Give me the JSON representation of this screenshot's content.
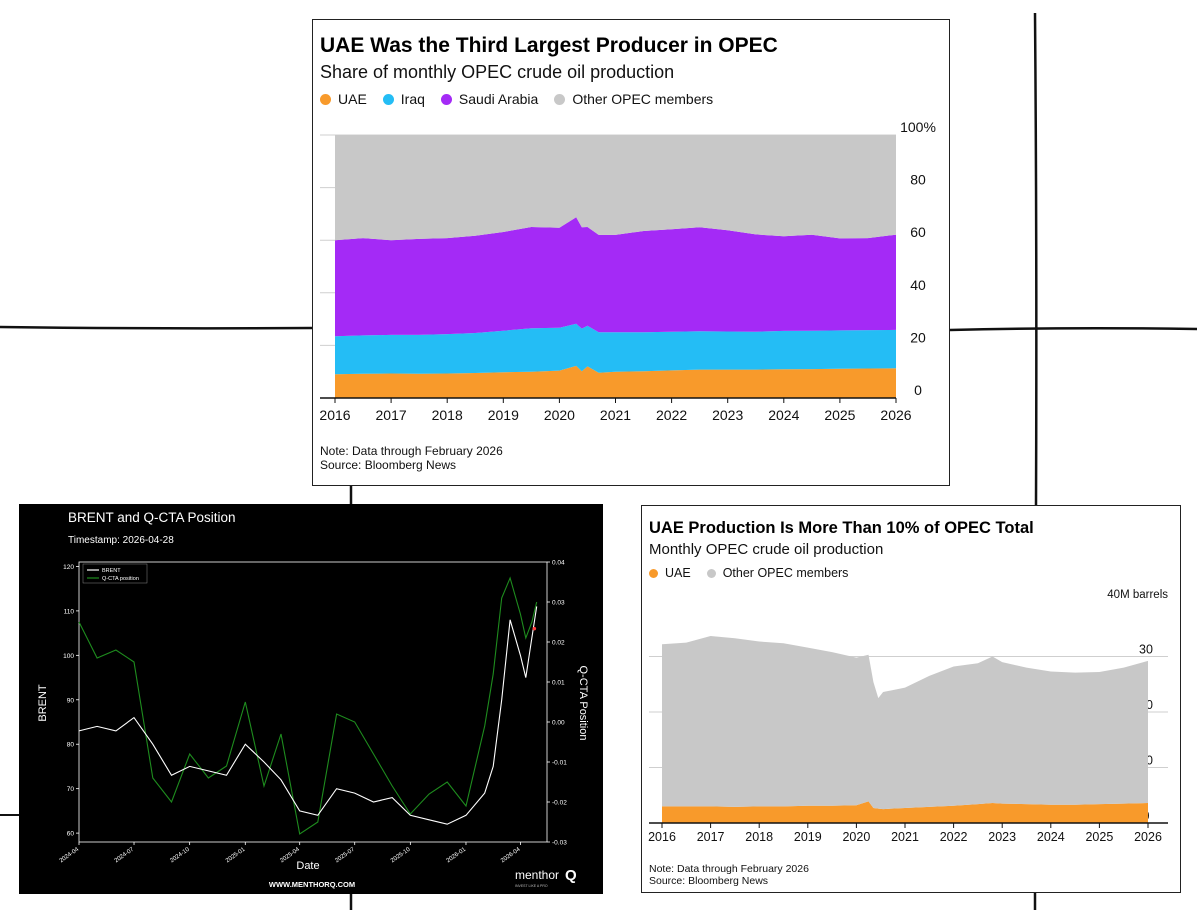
{
  "charts": {
    "share": {
      "title": "UAE Was the Third Largest Producer in OPEC",
      "subtitle": "Share of monthly OPEC crude oil production",
      "note": "Note: Data through February 2026",
      "source": "Source: Bloomberg News",
      "legend": [
        {
          "label": "UAE",
          "color": "#f89a2b"
        },
        {
          "label": "Iraq",
          "color": "#24bdf5"
        },
        {
          "label": "Saudi Arabia",
          "color": "#a42af6"
        },
        {
          "label": "Other OPEC members",
          "color": "#c8c8c8"
        }
      ],
      "y_tick_labels": [
        "0",
        "20",
        "40",
        "60",
        "80",
        "100%"
      ],
      "x_tick_labels": [
        "2016",
        "2017",
        "2018",
        "2019",
        "2020",
        "2021",
        "2022",
        "2023",
        "2024",
        "2025",
        "2026"
      ]
    },
    "brent": {
      "title": "BRENT and Q-CTA Position",
      "timestamp": "Timestamp: 2026-04-28",
      "ylabel_left": "BRENT",
      "ylabel_right": "Q-CTA Position",
      "xlabel": "Date",
      "legend": [
        {
          "label": "BRENT",
          "color": "#ffffff"
        },
        {
          "label": "Q-CTA position",
          "color": "#1e8c1e"
        }
      ],
      "left_ticks": [
        "60",
        "70",
        "80",
        "90",
        "100",
        "110",
        "120"
      ],
      "right_ticks": [
        "-0.03",
        "-0.02",
        "-0.01",
        "0.00",
        "0.01",
        "0.02",
        "0.03",
        "0.04"
      ],
      "x_tick_labels": [
        "2024-04",
        "2024-07",
        "2024-10",
        "2025-01",
        "2025-04",
        "2025-07",
        "2025-10",
        "2026-01",
        "2026-04"
      ],
      "website": "WWW.MENTHORQ.COM",
      "brand": "menthor",
      "brand_mark": "Q",
      "brand_tagline": "INVEST LIKE A PRO"
    },
    "production": {
      "title": "UAE Production Is More Than 10% of OPEC Total",
      "subtitle": "Monthly OPEC crude oil production",
      "unit_label": "40M barrels",
      "note": "Note: Data through February 2026",
      "source": "Source: Bloomberg News",
      "legend": [
        {
          "label": "UAE",
          "color": "#f89a2b"
        },
        {
          "label": "Other OPEC members",
          "color": "#c8c8c8"
        }
      ],
      "y_tick_labels": [
        "0",
        "10",
        "20",
        "30"
      ],
      "x_tick_labels": [
        "2016",
        "2017",
        "2018",
        "2019",
        "2020",
        "2021",
        "2022",
        "2023",
        "2024",
        "2025",
        "2026"
      ]
    }
  },
  "chart_data": [
    {
      "type": "area",
      "title": "UAE Was the Third Largest Producer in OPEC",
      "subtitle": "Share of monthly OPEC crude oil production",
      "ylim": [
        0,
        100
      ],
      "y_unit": "%",
      "stacked": true,
      "x": [
        2016.0,
        2016.5,
        2017.0,
        2017.5,
        2018.0,
        2018.5,
        2019.0,
        2019.5,
        2020.0,
        2020.3,
        2020.4,
        2020.5,
        2020.7,
        2021.0,
        2021.5,
        2022.0,
        2022.5,
        2023.0,
        2023.5,
        2024.0,
        2024.5,
        2025.0,
        2025.5,
        2026.0
      ],
      "series": [
        {
          "name": "UAE",
          "values": [
            9.0,
            9.2,
            9.3,
            9.2,
            9.3,
            9.5,
            9.8,
            10.0,
            10.4,
            12.2,
            10.2,
            12.0,
            9.6,
            10.0,
            10.2,
            10.5,
            10.8,
            10.8,
            10.8,
            10.9,
            11.0,
            11.1,
            11.2,
            11.3
          ]
        },
        {
          "name": "Iraq",
          "values": [
            14.5,
            14.6,
            14.7,
            14.8,
            15.0,
            15.2,
            15.8,
            16.5,
            16.3,
            16.0,
            16.2,
            15.5,
            15.4,
            15.0,
            14.8,
            14.7,
            14.6,
            14.5,
            14.4,
            14.6,
            14.6,
            14.6,
            14.6,
            14.6
          ]
        },
        {
          "name": "Saudi Arabia",
          "values": [
            36.5,
            37.0,
            36.0,
            36.5,
            36.5,
            37.0,
            37.5,
            38.5,
            38.0,
            40.5,
            38.5,
            37.5,
            37.0,
            37.0,
            38.5,
            39.0,
            39.5,
            38.5,
            37.0,
            36.0,
            36.5,
            35.0,
            35.0,
            36.2
          ]
        },
        {
          "name": "Other OPEC members",
          "values": [
            40.0,
            39.2,
            40.0,
            39.5,
            39.2,
            38.3,
            36.9,
            35.0,
            35.3,
            31.3,
            35.1,
            35.0,
            38.0,
            38.0,
            36.5,
            35.8,
            35.1,
            36.2,
            37.8,
            38.5,
            37.9,
            39.3,
            39.2,
            37.9
          ]
        }
      ]
    },
    {
      "type": "line",
      "title": "BRENT and Q-CTA Position",
      "xlabel": "Date",
      "ylabel": "BRENT",
      "y2label": "Q-CTA Position",
      "ylim": [
        58,
        121
      ],
      "y2lim": [
        -0.03,
        0.04
      ],
      "legend_position": "top-left",
      "x": [
        "2024-04-01",
        "2024-05-01",
        "2024-06-01",
        "2024-07-01",
        "2024-08-01",
        "2024-09-01",
        "2024-10-01",
        "2024-11-01",
        "2024-12-01",
        "2025-01-01",
        "2025-02-01",
        "2025-03-01",
        "2025-04-01",
        "2025-05-01",
        "2025-06-01",
        "2025-07-01",
        "2025-08-01",
        "2025-09-01",
        "2025-10-01",
        "2025-11-01",
        "2025-12-01",
        "2026-01-01",
        "2026-02-01",
        "2026-02-15",
        "2026-03-01",
        "2026-03-15",
        "2026-04-01",
        "2026-04-10",
        "2026-04-20",
        "2026-04-28"
      ],
      "series": [
        {
          "name": "BRENT",
          "axis": "left",
          "values": [
            83,
            84,
            83,
            86,
            80,
            73,
            75,
            74,
            73,
            80,
            76,
            72,
            65,
            64,
            70,
            69,
            67,
            68,
            64,
            63,
            62,
            64,
            69,
            75,
            90,
            108,
            100,
            95,
            104,
            111
          ]
        },
        {
          "name": "Q-CTA position",
          "axis": "right",
          "values": [
            0.025,
            0.016,
            0.018,
            0.015,
            -0.014,
            -0.02,
            -0.008,
            -0.014,
            -0.011,
            0.005,
            -0.016,
            -0.003,
            -0.028,
            -0.025,
            0.002,
            0.0,
            -0.008,
            -0.016,
            -0.023,
            -0.018,
            -0.015,
            -0.021,
            -0.001,
            0.012,
            0.031,
            0.036,
            0.027,
            0.021,
            0.025,
            0.03
          ]
        }
      ]
    },
    {
      "type": "area",
      "title": "UAE Production Is More Than 10% of OPEC Total",
      "subtitle": "Monthly OPEC crude oil production",
      "ylim": [
        0,
        40
      ],
      "y_unit": "M barrels",
      "stacked": true,
      "x": [
        2016.0,
        2016.5,
        2017.0,
        2017.5,
        2018.0,
        2018.5,
        2019.0,
        2019.5,
        2020.0,
        2020.25,
        2020.35,
        2020.45,
        2020.55,
        2021.0,
        2021.5,
        2022.0,
        2022.5,
        2022.8,
        2023.0,
        2023.5,
        2024.0,
        2024.5,
        2025.0,
        2025.5,
        2026.0
      ],
      "series": [
        {
          "name": "UAE",
          "values": [
            3.0,
            3.0,
            3.0,
            2.9,
            3.0,
            3.0,
            3.1,
            3.1,
            3.2,
            3.9,
            2.7,
            2.6,
            2.5,
            2.7,
            2.9,
            3.1,
            3.4,
            3.6,
            3.5,
            3.4,
            3.3,
            3.3,
            3.4,
            3.5,
            3.6
          ]
        },
        {
          "name": "Other OPEC members",
          "values": [
            29.2,
            29.5,
            30.7,
            30.4,
            29.7,
            29.4,
            28.5,
            27.7,
            26.6,
            26.4,
            22.7,
            19.9,
            21.1,
            21.7,
            23.6,
            25.1,
            25.4,
            26.4,
            25.5,
            24.6,
            24.0,
            23.8,
            23.8,
            24.5,
            25.6
          ]
        }
      ]
    }
  ]
}
